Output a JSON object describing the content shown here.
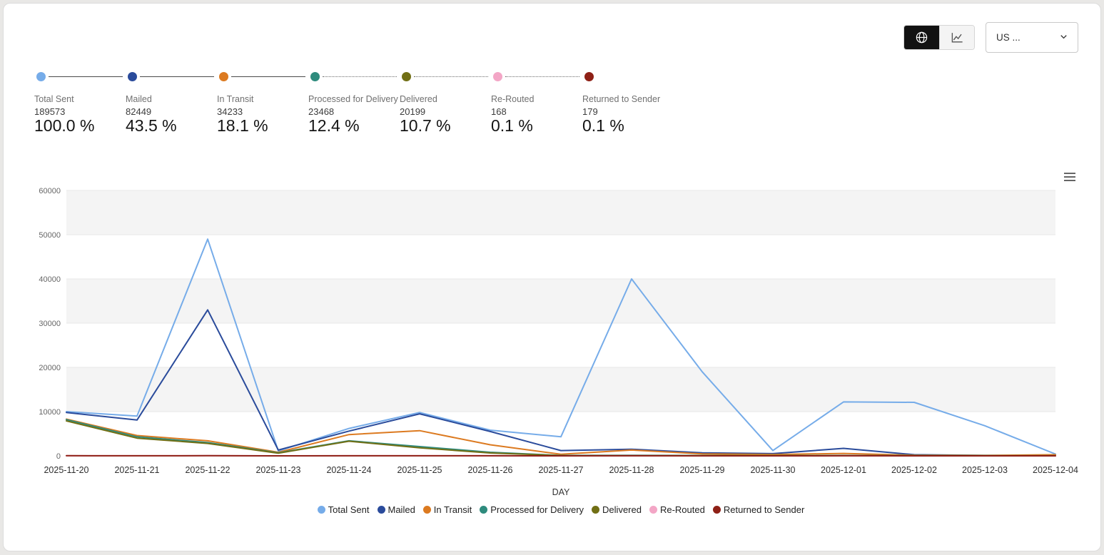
{
  "controls": {
    "country_select_value": "US ...",
    "map_button_icon": "globe-icon",
    "chart_button_icon": "line-chart-icon",
    "accent_dark": "#121212"
  },
  "funnel": {
    "stages": [
      {
        "label": "Total Sent",
        "count": "189573",
        "percent": "100.0 %",
        "color": "#76ace9",
        "connector_to_next": "solid"
      },
      {
        "label": "Mailed",
        "count": "82449",
        "percent": "43.5 %",
        "color": "#2a4b9b",
        "connector_to_next": "solid"
      },
      {
        "label": "In Transit",
        "count": "34233",
        "percent": "18.1 %",
        "color": "#dc7a20",
        "connector_to_next": "solid"
      },
      {
        "label": "Processed for Delivery",
        "count": "23468",
        "percent": "12.4 %",
        "color": "#2e8b7d",
        "connector_to_next": "dashed"
      },
      {
        "label": "Delivered",
        "count": "20199",
        "percent": "10.7 %",
        "color": "#716f15",
        "connector_to_next": "dashed"
      },
      {
        "label": "Re-Routed",
        "count": "168",
        "percent": "0.1 %",
        "color": "#f3a6c6",
        "connector_to_next": "dashed"
      },
      {
        "label": "Returned to Sender",
        "count": "179",
        "percent": "0.1 %",
        "color": "#8e2016",
        "connector_to_next": "none"
      }
    ]
  },
  "chart_data": {
    "type": "line",
    "title": "",
    "xlabel": "DAY",
    "ylabel": "",
    "ylim": [
      0,
      60000
    ],
    "yticks": [
      0,
      10000,
      20000,
      30000,
      40000,
      50000,
      60000
    ],
    "grid": "horizontal gridlines with alternating gray bands",
    "legend_position": "bottom",
    "band_color": "#f4f4f4",
    "gridline_color": "#e7e7e7",
    "x": [
      "2025-11-20",
      "2025-11-21",
      "2025-11-22",
      "2025-11-23",
      "2025-11-24",
      "2025-11-25",
      "2025-11-26",
      "2025-11-27",
      "2025-11-28",
      "2025-11-29",
      "2025-11-30",
      "2025-12-01",
      "2025-12-02",
      "2025-12-03",
      "2025-12-04"
    ],
    "series": [
      {
        "name": "Total Sent",
        "color": "#76ace9",
        "values": [
          10000,
          9000,
          49000,
          1100,
          6200,
          9800,
          5800,
          4300,
          40000,
          19000,
          1200,
          12200,
          12100,
          6800,
          400
        ]
      },
      {
        "name": "Mailed",
        "color": "#2a4b9b",
        "values": [
          9800,
          8100,
          33000,
          1300,
          5600,
          9500,
          5500,
          1200,
          1500,
          700,
          500,
          1700,
          250,
          100,
          60
        ]
      },
      {
        "name": "In Transit",
        "color": "#dc7a20",
        "values": [
          8300,
          4600,
          3400,
          800,
          4800,
          5700,
          2500,
          350,
          1300,
          450,
          300,
          550,
          150,
          100,
          250
        ]
      },
      {
        "name": "Processed for Delivery",
        "color": "#2e8b7d",
        "values": [
          8200,
          4300,
          3000,
          700,
          3400,
          2100,
          800,
          100,
          120,
          80,
          60,
          100,
          50,
          30,
          20
        ]
      },
      {
        "name": "Delivered",
        "color": "#716f15",
        "values": [
          7900,
          4000,
          2800,
          600,
          3300,
          1800,
          650,
          60,
          50,
          40,
          30,
          50,
          30,
          20,
          10
        ]
      },
      {
        "name": "Re-Routed",
        "color": "#f3a6c6",
        "values": [
          20,
          15,
          30,
          5,
          10,
          15,
          10,
          5,
          20,
          5,
          5,
          10,
          5,
          5,
          3
        ]
      },
      {
        "name": "Returned to Sender",
        "color": "#8e2016",
        "values": [
          25,
          20,
          30,
          5,
          15,
          15,
          10,
          5,
          20,
          5,
          5,
          10,
          5,
          5,
          4
        ]
      }
    ]
  }
}
